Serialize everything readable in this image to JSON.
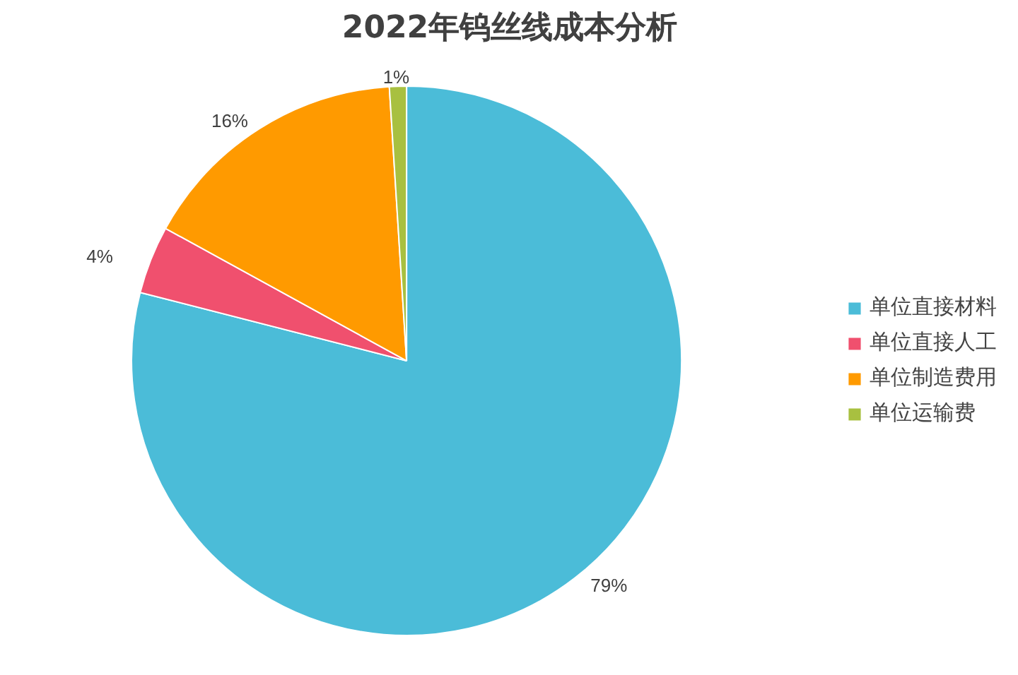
{
  "chart_data": {
    "type": "pie",
    "title": "2022年钨丝线成本分析",
    "categories": [
      "单位直接材料",
      "单位直接人工",
      "单位制造费用",
      "单位运输费"
    ],
    "values": [
      79,
      4,
      16,
      1
    ],
    "colors": [
      "#4bbcd8",
      "#f0506e",
      "#ff9a00",
      "#a8c040"
    ],
    "value_labels": [
      "79%",
      "4%",
      "16%",
      "1%"
    ],
    "legend": "right"
  }
}
